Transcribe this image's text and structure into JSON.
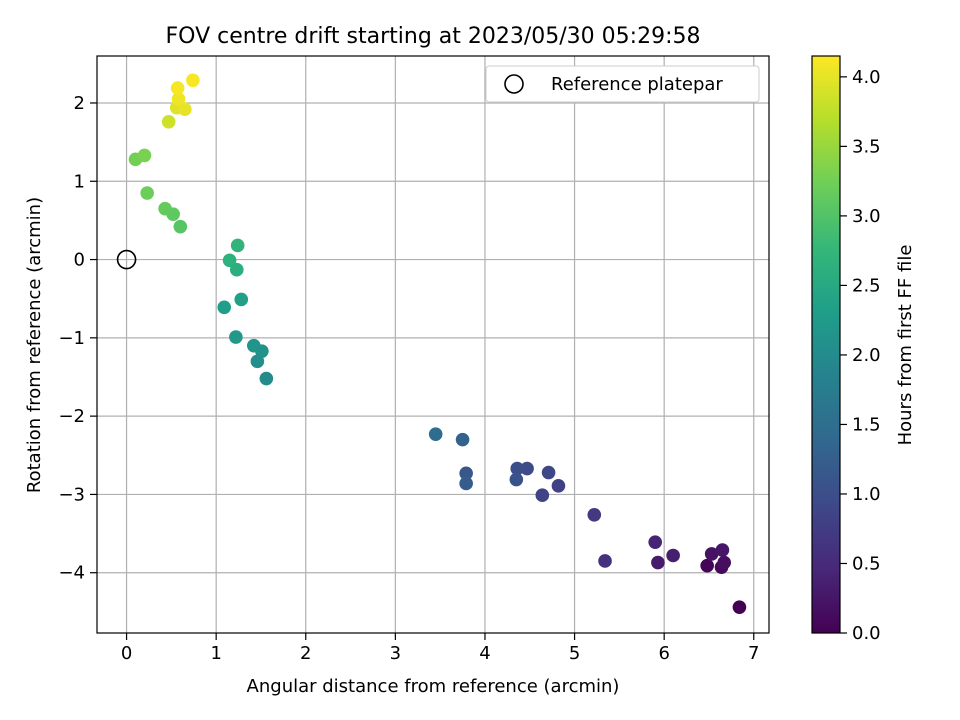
{
  "chart_data": {
    "type": "scatter",
    "title": "FOV centre drift starting at 2023/05/30 05:29:58",
    "xlabel": "Angular distance from reference (arcmin)",
    "ylabel": "Rotation from reference (arcmin)",
    "xlim": [
      -0.33,
      7.17
    ],
    "ylim": [
      -4.77,
      2.6
    ],
    "x_ticks": [
      0,
      1,
      2,
      3,
      4,
      5,
      6,
      7
    ],
    "y_ticks": [
      -4,
      -3,
      -2,
      -1,
      0,
      1,
      2
    ],
    "grid": true,
    "legend": {
      "placement": "top-right",
      "entries": [
        "Reference platepar"
      ]
    },
    "reference_point": {
      "x": 0,
      "y": 0
    },
    "colorbar": {
      "label": "Hours from first FF file",
      "range": [
        0,
        4.15
      ],
      "ticks": [
        0.0,
        0.5,
        1.0,
        1.5,
        2.0,
        2.5,
        3.0,
        3.5,
        4.0
      ],
      "colormap": "viridis",
      "stops": [
        "#440154",
        "#482878",
        "#3e4989",
        "#31688e",
        "#26828e",
        "#1f9e89",
        "#35b779",
        "#6ece58",
        "#b5de2b",
        "#fde725"
      ]
    },
    "points": [
      {
        "x": 6.84,
        "y": -4.44,
        "t": 0.0
      },
      {
        "x": 6.48,
        "y": -3.91,
        "t": 0.05
      },
      {
        "x": 6.64,
        "y": -3.93,
        "t": 0.1
      },
      {
        "x": 6.67,
        "y": -3.87,
        "t": 0.15
      },
      {
        "x": 6.53,
        "y": -3.76,
        "t": 0.2
      },
      {
        "x": 6.65,
        "y": -3.71,
        "t": 0.25
      },
      {
        "x": 5.93,
        "y": -3.87,
        "t": 0.3
      },
      {
        "x": 6.1,
        "y": -3.78,
        "t": 0.35
      },
      {
        "x": 5.9,
        "y": -3.61,
        "t": 0.4
      },
      {
        "x": 5.34,
        "y": -3.85,
        "t": 0.6
      },
      {
        "x": 5.22,
        "y": -3.26,
        "t": 0.7
      },
      {
        "x": 4.82,
        "y": -2.89,
        "t": 0.8
      },
      {
        "x": 4.64,
        "y": -3.01,
        "t": 0.85
      },
      {
        "x": 4.71,
        "y": -2.72,
        "t": 0.9
      },
      {
        "x": 4.47,
        "y": -2.67,
        "t": 0.95
      },
      {
        "x": 4.36,
        "y": -2.67,
        "t": 1.0
      },
      {
        "x": 4.35,
        "y": -2.81,
        "t": 1.05
      },
      {
        "x": 3.79,
        "y": -2.73,
        "t": 1.15
      },
      {
        "x": 3.79,
        "y": -2.86,
        "t": 1.2
      },
      {
        "x": 3.75,
        "y": -2.3,
        "t": 1.3
      },
      {
        "x": 3.45,
        "y": -2.23,
        "t": 1.45
      },
      {
        "x": 1.56,
        "y": -1.52,
        "t": 2.0
      },
      {
        "x": 1.46,
        "y": -1.3,
        "t": 2.05
      },
      {
        "x": 1.51,
        "y": -1.17,
        "t": 2.1
      },
      {
        "x": 1.42,
        "y": -1.1,
        "t": 2.15
      },
      {
        "x": 1.22,
        "y": -0.99,
        "t": 2.2
      },
      {
        "x": 1.09,
        "y": -0.61,
        "t": 2.3
      },
      {
        "x": 1.28,
        "y": -0.51,
        "t": 2.35
      },
      {
        "x": 1.23,
        "y": -0.13,
        "t": 2.6
      },
      {
        "x": 1.15,
        "y": -0.01,
        "t": 2.65
      },
      {
        "x": 1.24,
        "y": 0.18,
        "t": 2.7
      },
      {
        "x": 0.6,
        "y": 0.42,
        "t": 3.05
      },
      {
        "x": 0.52,
        "y": 0.58,
        "t": 3.1
      },
      {
        "x": 0.43,
        "y": 0.65,
        "t": 3.15
      },
      {
        "x": 0.23,
        "y": 0.85,
        "t": 3.2
      },
      {
        "x": 0.1,
        "y": 1.28,
        "t": 3.25
      },
      {
        "x": 0.2,
        "y": 1.33,
        "t": 3.3
      },
      {
        "x": 0.47,
        "y": 1.76,
        "t": 3.85
      },
      {
        "x": 0.56,
        "y": 1.94,
        "t": 3.95
      },
      {
        "x": 0.65,
        "y": 1.92,
        "t": 4.0
      },
      {
        "x": 0.58,
        "y": 2.05,
        "t": 4.05
      },
      {
        "x": 0.57,
        "y": 2.19,
        "t": 4.1
      },
      {
        "x": 0.74,
        "y": 2.29,
        "t": 4.12
      }
    ]
  }
}
